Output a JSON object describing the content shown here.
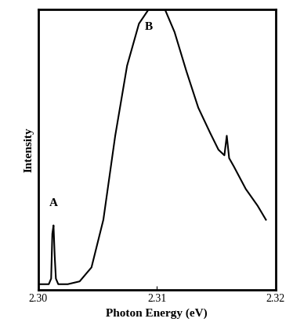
{
  "chart_data": {
    "type": "line",
    "xlabel": "Photon Energy (eV)",
    "ylabel": "Intensity",
    "x": [
      2.3,
      2.3005,
      2.3009,
      2.3011,
      2.3012,
      2.3013,
      2.3014,
      2.3015,
      2.3017,
      2.3025,
      2.3035,
      2.3045,
      2.3055,
      2.3065,
      2.3075,
      2.3085,
      2.3093,
      2.3107,
      2.3115,
      2.3125,
      2.3135,
      2.3145,
      2.3152,
      2.3157,
      2.3159,
      2.3161,
      2.3165,
      2.3175,
      2.3185,
      2.3192
    ],
    "values": [
      2,
      2,
      2,
      4,
      20,
      23,
      12,
      4,
      2,
      2,
      3,
      8,
      25,
      55,
      80,
      95,
      100,
      100,
      92,
      78,
      65,
      56,
      50,
      48,
      55,
      47,
      44,
      36,
      30,
      25
    ],
    "color": "#000000",
    "xlim": [
      2.3,
      2.32
    ],
    "xticks": [
      {
        "value": 2.3,
        "label": "2.30"
      },
      {
        "value": 2.31,
        "label": "2.31"
      },
      {
        "value": 2.32,
        "label": "2.32"
      }
    ],
    "ylim": [
      0,
      100
    ],
    "yticks": [],
    "tick_labels": "x",
    "grid": false,
    "annotations": [
      {
        "text": "A",
        "x": 2.3013,
        "y": 29
      },
      {
        "text": "B",
        "x": 2.3093,
        "y": 92
      }
    ]
  }
}
